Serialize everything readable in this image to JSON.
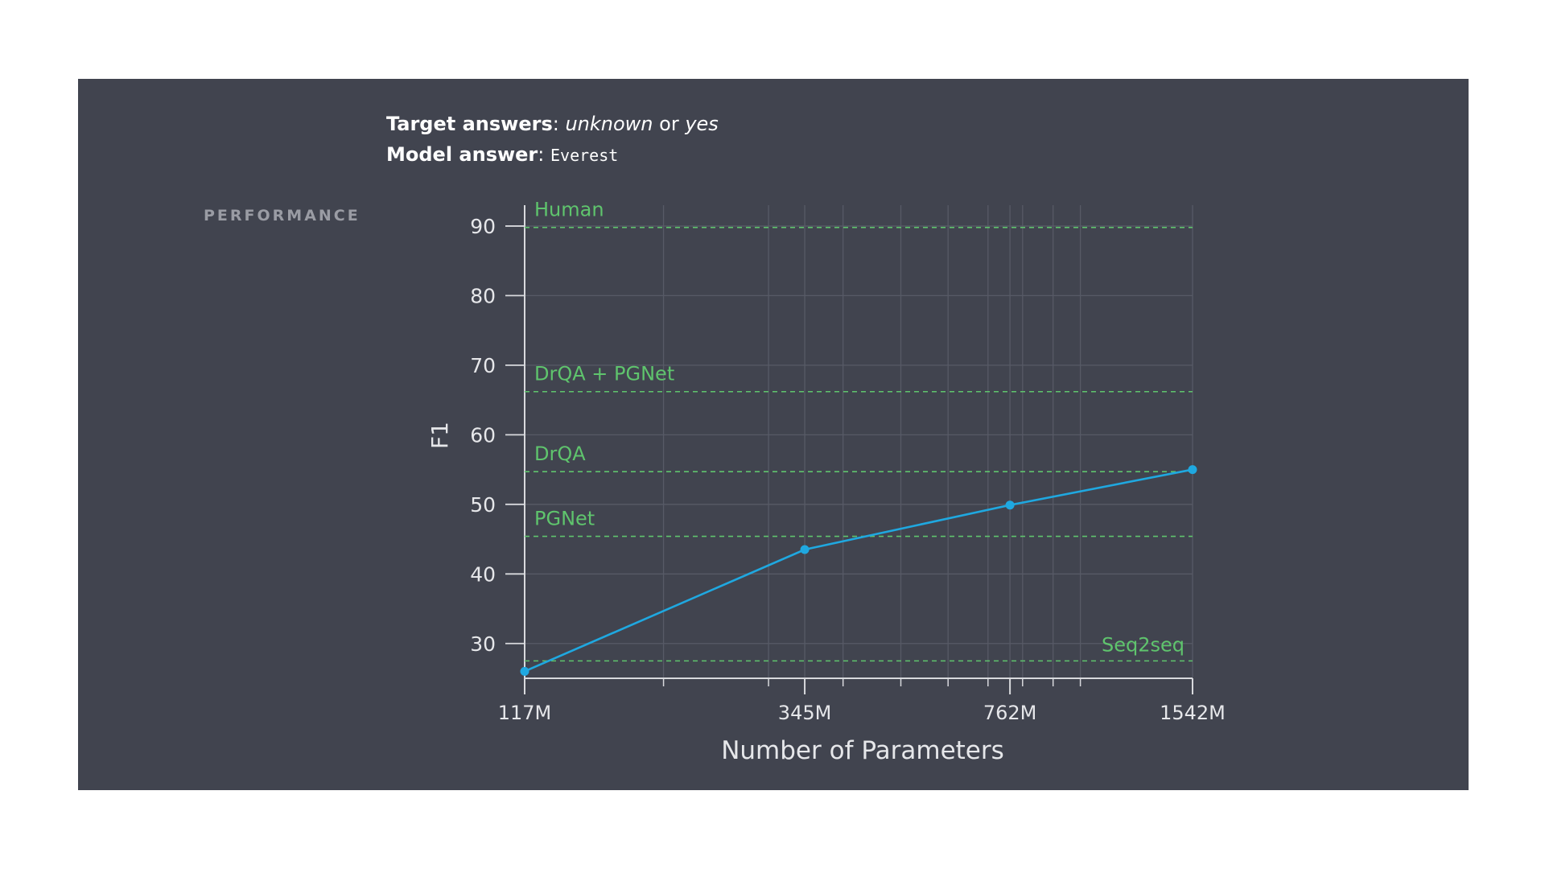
{
  "header": {
    "target_label": "Target answers",
    "target_sep": ": ",
    "target_value_1": "unknown",
    "target_or": " or ",
    "target_value_2": "yes",
    "model_label": "Model answer",
    "model_sep": ": ",
    "model_value": "Everest"
  },
  "section_label": "PERFORMANCE",
  "colors": {
    "panel": "#41444f",
    "line": "#1fa8e0",
    "baseline": "#5fc46d",
    "axis": "#d8d9dd",
    "grid": "#575a66",
    "text": "#e6e7ea"
  },
  "chart_data": {
    "type": "line",
    "title": "",
    "xlabel": "Number of Parameters",
    "ylabel": "F1",
    "x_scale": "log",
    "x_tick_labels": [
      "117M",
      "345M",
      "762M",
      "1542M"
    ],
    "x_minor_ticks": [
      200,
      300,
      400,
      500,
      600,
      700,
      800,
      900,
      1000
    ],
    "y_ticks": [
      30,
      40,
      50,
      60,
      70,
      80,
      90
    ],
    "ylim": [
      25,
      93
    ],
    "grid": true,
    "series": [
      {
        "x": [
          117,
          345,
          762,
          1542
        ],
        "y": [
          26,
          43.5,
          49.9,
          55
        ]
      }
    ],
    "baselines": [
      {
        "label": "Human",
        "y": 89.8
      },
      {
        "label": "DrQA + PGNet",
        "y": 66.2
      },
      {
        "label": "DrQA",
        "y": 54.7
      },
      {
        "label": "PGNet",
        "y": 45.4
      },
      {
        "label": "Seq2seq",
        "y": 27.5
      }
    ]
  }
}
